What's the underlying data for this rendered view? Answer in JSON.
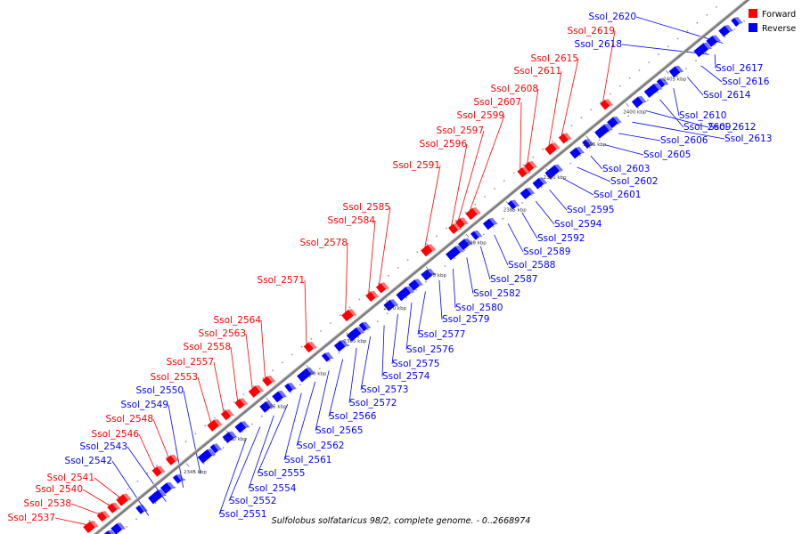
{
  "caption": "Sulfolobus solfataricus 98/2, complete genome. - 0..2668974",
  "legend": [
    {
      "label": "Forward",
      "color": "#ff0000"
    },
    {
      "label": "Reverse",
      "color": "#0000ff"
    }
  ],
  "colors": {
    "forward": "#ff0000",
    "reverse": "#0000ff",
    "axis": "#808080",
    "tick_dot": "#999999"
  },
  "ticks": [
    "2345 kbp",
    "2350 kbp",
    "2355 kbp",
    "2360 kbp",
    "2365 kbp",
    "2370 kbp",
    "2375 kbp",
    "2380 kbp",
    "2385 kbp",
    "2390 kbp",
    "2395 kbp",
    "2400 kbp",
    "2405 kbp"
  ],
  "forward_genes": [
    "Ssol_2537",
    "Ssol_2538",
    "Ssol_2540",
    "Ssol_2541",
    "Ssol_2546",
    "Ssol_2548",
    "Ssol_2553",
    "Ssol_2557",
    "Ssol_2558",
    "Ssol_2563",
    "Ssol_2564",
    "Ssol_2571",
    "Ssol_2578",
    "Ssol_2584",
    "Ssol_2585",
    "Ssol_2591",
    "Ssol_2596",
    "Ssol_2597",
    "Ssol_2599",
    "Ssol_2607",
    "Ssol_2608",
    "Ssol_2611",
    "Ssol_2615",
    "Ssol_2619"
  ],
  "reverse_genes_top": [
    "Ssol_2620",
    "Ssol_2618"
  ],
  "reverse_genes_left": [
    "Ssol_2550",
    "Ssol_2549",
    "Ssol_2543",
    "Ssol_2542"
  ],
  "reverse_genes_right": [
    "Ssol_2617",
    "Ssol_2616",
    "Ssol_2614",
    "Ssol_2610",
    "Ssol_2609",
    "Ssol_2612",
    "Ssol_2613",
    "Ssol_2606",
    "Ssol_2605",
    "Ssol_2603",
    "Ssol_2602",
    "Ssol_2601",
    "Ssol_2595",
    "Ssol_2594",
    "Ssol_2592",
    "Ssol_2589",
    "Ssol_2588",
    "Ssol_2587",
    "Ssol_2582",
    "Ssol_2580",
    "Ssol_2579",
    "Ssol_2577",
    "Ssol_2576",
    "Ssol_2575",
    "Ssol_2574",
    "Ssol_2573",
    "Ssol_2572",
    "Ssol_2566",
    "Ssol_2565",
    "Ssol_2562",
    "Ssol_2561",
    "Ssol_2555",
    "Ssol_2554",
    "Ssol_2552",
    "Ssol_2551"
  ]
}
